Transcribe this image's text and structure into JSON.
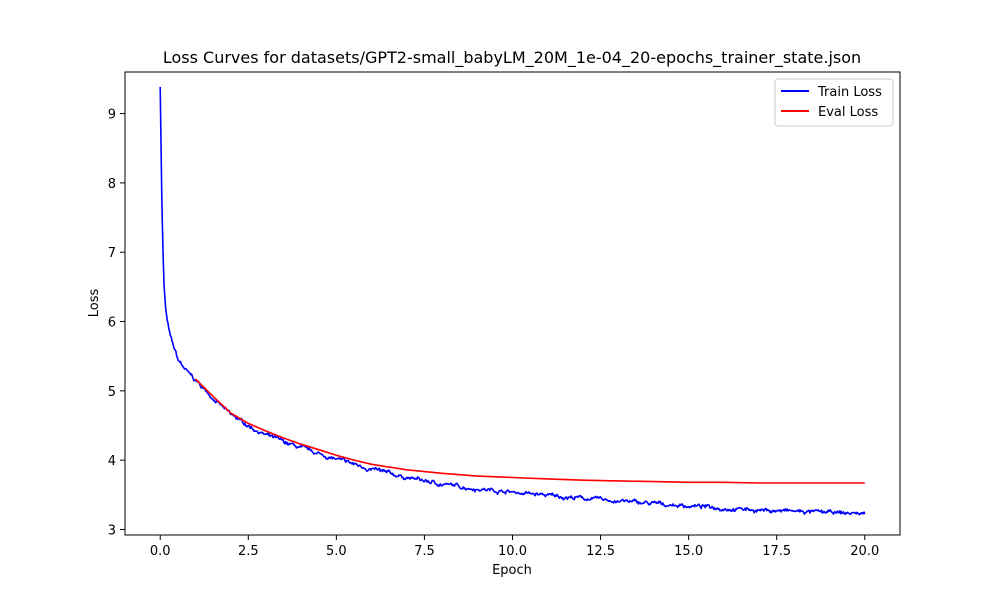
{
  "chart_data": {
    "type": "line",
    "title": "Loss Curves for datasets/GPT2-small_babyLM_20M_1e-04_20-epochs_trainer_state.json",
    "xlabel": "Epoch",
    "ylabel": "Loss",
    "xlim": [
      -1.0,
      21.0
    ],
    "ylim": [
      2.92,
      9.6
    ],
    "xticks": [
      0.0,
      2.5,
      5.0,
      7.5,
      10.0,
      12.5,
      15.0,
      17.5,
      20.0
    ],
    "xtick_labels": [
      "0.0",
      "2.5",
      "5.0",
      "7.5",
      "10.0",
      "12.5",
      "15.0",
      "17.5",
      "20.0"
    ],
    "yticks": [
      3,
      4,
      5,
      6,
      7,
      8,
      9
    ],
    "ytick_labels": [
      "3",
      "4",
      "5",
      "6",
      "7",
      "8",
      "9"
    ],
    "grid": false,
    "legend_position": "top-right",
    "series": [
      {
        "name": "Train Loss",
        "color": "#0000ff",
        "noisy": true,
        "x": [
          0.0,
          0.05,
          0.1,
          0.15,
          0.2,
          0.3,
          0.4,
          0.5,
          0.6,
          0.8,
          1.0,
          1.25,
          1.5,
          2.0,
          2.5,
          3.0,
          3.5,
          4.0,
          4.5,
          5.0,
          5.5,
          6.0,
          6.5,
          7.0,
          7.5,
          8.0,
          9.0,
          10.0,
          11.0,
          12.0,
          13.0,
          14.0,
          15.0,
          16.0,
          17.0,
          18.0,
          19.0,
          20.0
        ],
        "y": [
          9.4,
          7.6,
          6.6,
          6.2,
          6.0,
          5.75,
          5.6,
          5.45,
          5.38,
          5.25,
          5.15,
          5.02,
          4.9,
          4.65,
          4.5,
          4.36,
          4.26,
          4.17,
          4.09,
          4.01,
          3.94,
          3.87,
          3.8,
          3.75,
          3.7,
          3.65,
          3.59,
          3.54,
          3.49,
          3.45,
          3.41,
          3.37,
          3.34,
          3.31,
          3.28,
          3.26,
          3.24,
          3.23
        ]
      },
      {
        "name": "Eval Loss",
        "color": "#ff0000",
        "noisy": false,
        "x": [
          1.0,
          1.5,
          2.0,
          2.5,
          3.0,
          3.5,
          4.0,
          4.5,
          5.0,
          5.5,
          6.0,
          7.0,
          8.0,
          9.0,
          10.0,
          11.0,
          12.0,
          13.0,
          14.0,
          15.0,
          16.0,
          17.0,
          18.0,
          19.0,
          20.0
        ],
        "y": [
          5.17,
          4.92,
          4.68,
          4.53,
          4.42,
          4.32,
          4.23,
          4.15,
          4.07,
          4.0,
          3.94,
          3.86,
          3.81,
          3.77,
          3.75,
          3.73,
          3.71,
          3.7,
          3.69,
          3.68,
          3.68,
          3.67,
          3.67,
          3.67,
          3.67
        ]
      }
    ]
  }
}
